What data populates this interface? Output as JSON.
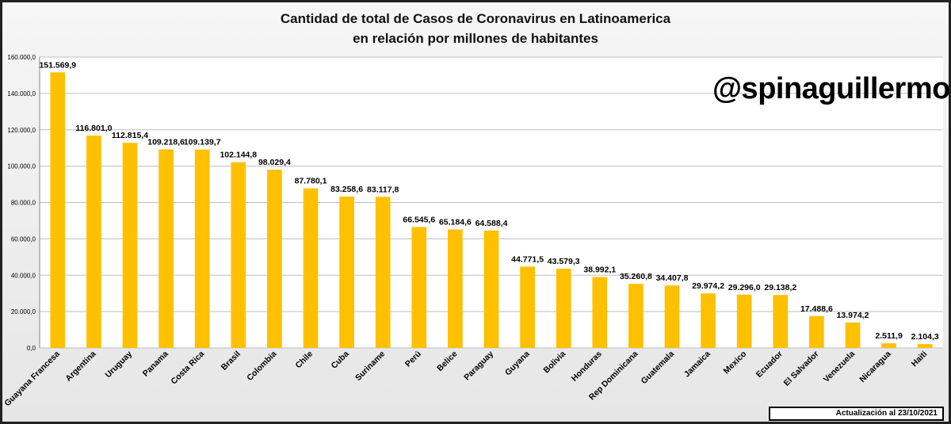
{
  "title_line1": "Cantidad de total de Casos de Coronavirus en Latinoamerica",
  "title_line2": "en relación por millones de habitantes",
  "watermark_handle": "@spinaguillermo",
  "footer_update": "Actualización  al 23/10/2021",
  "colors": {
    "bar": "#FFC000",
    "plot_bg": "#FFFFFF",
    "grid": "#BFBFBF"
  },
  "chart_data": {
    "type": "bar",
    "title": "Cantidad de total de Casos de Coronavirus en Latinoamerica en relación por millones de habitantes",
    "xlabel": "",
    "ylabel": "",
    "ylim": [
      0,
      160000
    ],
    "yticks": [
      0,
      20000,
      40000,
      60000,
      80000,
      100000,
      120000,
      140000,
      160000
    ],
    "ytick_labels": [
      "0,0",
      "20.000,0",
      "40.000,0",
      "60.000,0",
      "80.000,0",
      "100.000,0",
      "120.000,0",
      "140.000,0",
      "160.000,0"
    ],
    "grid": true,
    "categories": [
      "Guayana Francesa",
      "Argentina",
      "Uruguay",
      "Panama",
      "Costa Rica",
      "Brasil",
      "Colombia",
      "Chile",
      "Cuba",
      "Suriname",
      "Perú",
      "Belice",
      "Paraguay",
      "Guyana",
      "Bolivia",
      "Honduras",
      "Rep Dominicana",
      "Guatemala",
      "Jamaica",
      "Mexico",
      "Ecuador",
      "El Salvador",
      "Venezuela",
      "Nicaragua",
      "Haiti"
    ],
    "values": [
      151569.9,
      116801.0,
      112815.4,
      109218.6,
      109139.7,
      102144.8,
      98029.4,
      87780.1,
      83258.6,
      83117.8,
      66545.6,
      65184.6,
      64588.4,
      44771.5,
      43579.3,
      38992.1,
      35260.8,
      34407.8,
      29974.2,
      29296.0,
      29138.2,
      17488.6,
      13974.2,
      2511.9,
      2104.3
    ],
    "value_labels": [
      "151.569,9",
      "116.801,0",
      "112.815,4",
      "109.218,6",
      "109.139,7",
      "102.144,8",
      "98.029,4",
      "87.780,1",
      "83.258,6",
      "83.117,8",
      "66.545,6",
      "65.184,6",
      "64.588,4",
      "44.771,5",
      "43.579,3",
      "38.992,1",
      "35.260,8",
      "34.407,8",
      "29.974,2",
      "29.296,0",
      "29.138,2",
      "17.488,6",
      "13.974,2",
      "2.511,9",
      "2.104,3"
    ]
  }
}
